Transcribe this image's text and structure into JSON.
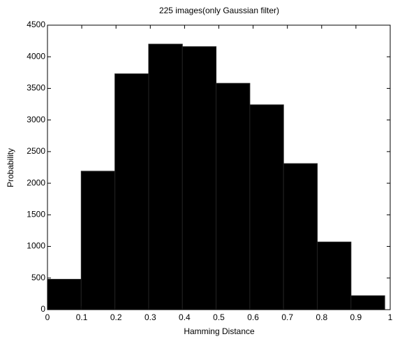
{
  "chart_data": {
    "type": "histogram",
    "title": "225 images(only Gaussian filter)",
    "x_label": "Hamming Distance",
    "y_label": "Probability",
    "bins": [
      0,
      0.0984,
      0.1968,
      0.2952,
      0.3936,
      0.492,
      0.5904,
      0.6888,
      0.7872,
      0.8856,
      0.984
    ],
    "values": [
      480,
      2190,
      3730,
      4200,
      4160,
      3580,
      3240,
      2310,
      1070,
      220
    ],
    "color": "#000000",
    "xlim": [
      0,
      1
    ],
    "xticks": [
      0,
      0.1,
      0.2,
      0.3,
      0.4,
      0.5,
      0.6,
      0.7,
      0.8,
      0.9,
      1
    ],
    "ylim": [
      0,
      4500
    ],
    "yticks": [
      0,
      500,
      1000,
      1500,
      2000,
      2500,
      3000,
      3500,
      4000,
      4500
    ],
    "grid": false
  }
}
